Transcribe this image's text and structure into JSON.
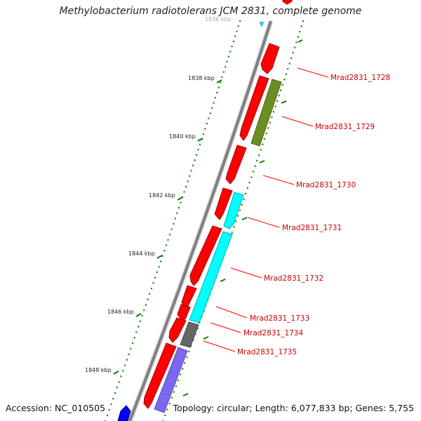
{
  "title": "Methylobacterium radiotolerans JCM 2831, complete genome",
  "footer": {
    "accession": "Accession: NC_010505",
    "summary": "Topology: circular; Length: 6,077,833 bp; Genes: 5,755"
  },
  "ticks": [
    {
      "label": "1836 kbp"
    },
    {
      "label": "1838 kbp"
    },
    {
      "label": "1840 kbp"
    },
    {
      "label": "1842 kbp"
    },
    {
      "label": "1844 kbp"
    },
    {
      "label": "1846 kbp"
    },
    {
      "label": "1848 kbp"
    }
  ],
  "gene_labels": [
    "Mrad2831_1728",
    "Mrad2831_1729",
    "Mrad2831_1730",
    "Mrad2831_1731",
    "Mrad2831_1732",
    "Mrad2831_1733",
    "Mrad2831_1734",
    "Mrad2831_1735"
  ],
  "colors": {
    "backbone": "#7f7f7f",
    "gene_red": "#ff0000",
    "gene_olive": "#6b8e23",
    "gene_cyan": "#00ffff",
    "gene_gray": "#666666",
    "gene_purple": "#7b68ee",
    "gene_blue": "#0000ff",
    "tick_green": "#008000",
    "label_red": "#cc0000"
  }
}
